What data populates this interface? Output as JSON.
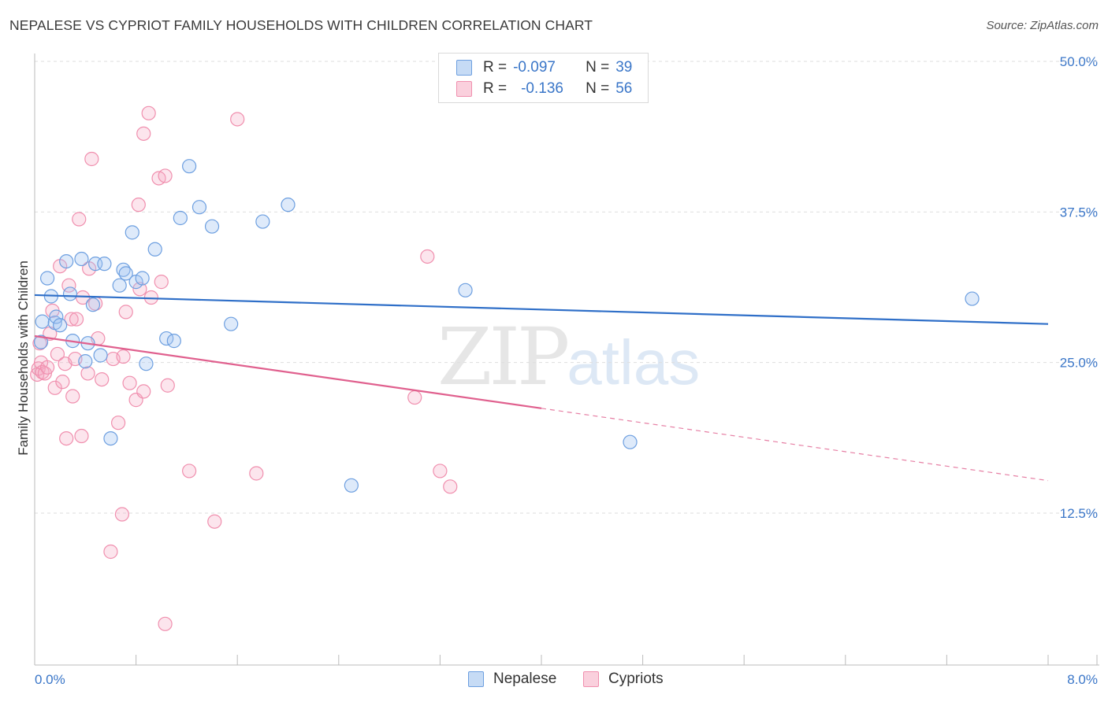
{
  "title": "NEPALESE VS CYPRIOT FAMILY HOUSEHOLDS WITH CHILDREN CORRELATION CHART",
  "source": "Source: ZipAtlas.com",
  "watermark": {
    "zip": "ZIP",
    "atlas": "atlas"
  },
  "legend_stats": [
    {
      "r_label": "R =",
      "r_value": "-0.097",
      "n_label": "N =",
      "n_value": "39"
    },
    {
      "r_label": "R =",
      "r_value": "-0.136",
      "n_label": "N =",
      "n_value": "56"
    }
  ],
  "chart_data": {
    "type": "scatter",
    "title": "NEPALESE VS CYPRIOT FAMILY HOUSEHOLDS WITH CHILDREN CORRELATION CHART",
    "xlabel": "",
    "ylabel": "Family Households with Children",
    "xlim": [
      0,
      8
    ],
    "ylim": [
      0,
      52
    ],
    "x_ticks": [
      "0.0%",
      "8.0%"
    ],
    "y_ticks": [
      {
        "value": 12.5,
        "label": "12.5%"
      },
      {
        "value": 25.0,
        "label": "25.0%"
      },
      {
        "value": 37.5,
        "label": "37.5%"
      },
      {
        "value": 50.0,
        "label": "50.0%"
      }
    ],
    "grid": "horizontal dashed",
    "legend_position": "bottom-center",
    "colors": {
      "nepalese": "#6d9fe0",
      "cypriots": "#f08fae",
      "nepalese_line": "#2f6fc8",
      "cypriots_line": "#e0608e"
    },
    "series": [
      {
        "name": "Nepalese",
        "trend": {
          "x0": 0.0,
          "y0": 30.6,
          "x1": 8.0,
          "y1": 28.2
        },
        "points": [
          [
            0.05,
            26.7
          ],
          [
            0.06,
            28.4
          ],
          [
            0.1,
            32.0
          ],
          [
            0.13,
            30.5
          ],
          [
            0.16,
            28.3
          ],
          [
            0.17,
            28.8
          ],
          [
            0.2,
            28.1
          ],
          [
            0.25,
            33.4
          ],
          [
            0.28,
            30.7
          ],
          [
            0.3,
            26.8
          ],
          [
            0.37,
            33.6
          ],
          [
            0.4,
            25.1
          ],
          [
            0.42,
            26.6
          ],
          [
            0.46,
            29.8
          ],
          [
            0.48,
            33.2
          ],
          [
            0.52,
            25.6
          ],
          [
            0.55,
            33.2
          ],
          [
            0.6,
            18.7
          ],
          [
            0.67,
            31.4
          ],
          [
            0.7,
            32.7
          ],
          [
            0.72,
            32.4
          ],
          [
            0.77,
            35.8
          ],
          [
            0.8,
            31.7
          ],
          [
            0.85,
            32.0
          ],
          [
            0.88,
            24.9
          ],
          [
            0.95,
            34.4
          ],
          [
            1.04,
            27.0
          ],
          [
            1.1,
            26.8
          ],
          [
            1.15,
            37.0
          ],
          [
            1.22,
            41.3
          ],
          [
            1.3,
            37.9
          ],
          [
            1.4,
            36.3
          ],
          [
            1.55,
            28.2
          ],
          [
            1.8,
            36.7
          ],
          [
            2.0,
            38.1
          ],
          [
            2.5,
            14.8
          ],
          [
            3.4,
            31.0
          ],
          [
            4.7,
            18.4
          ],
          [
            7.4,
            30.3
          ]
        ]
      },
      {
        "name": "Cypriots",
        "trend": {
          "x0": 0.0,
          "y0": 27.2,
          "x1": 4.0,
          "y1": 21.2,
          "dash_to": {
            "x": 8.0,
            "y": 15.2
          }
        },
        "points": [
          [
            0.02,
            24.0
          ],
          [
            0.03,
            24.5
          ],
          [
            0.04,
            26.6
          ],
          [
            0.05,
            25.0
          ],
          [
            0.06,
            24.2
          ],
          [
            0.08,
            24.1
          ],
          [
            0.1,
            24.6
          ],
          [
            0.12,
            27.4
          ],
          [
            0.14,
            29.3
          ],
          [
            0.16,
            22.9
          ],
          [
            0.18,
            25.7
          ],
          [
            0.2,
            33.0
          ],
          [
            0.22,
            23.4
          ],
          [
            0.24,
            24.9
          ],
          [
            0.25,
            18.7
          ],
          [
            0.27,
            31.4
          ],
          [
            0.29,
            28.6
          ],
          [
            0.3,
            22.2
          ],
          [
            0.32,
            25.3
          ],
          [
            0.33,
            28.6
          ],
          [
            0.35,
            36.9
          ],
          [
            0.37,
            18.9
          ],
          [
            0.38,
            30.4
          ],
          [
            0.42,
            24.1
          ],
          [
            0.43,
            32.8
          ],
          [
            0.45,
            41.9
          ],
          [
            0.48,
            29.9
          ],
          [
            0.5,
            27.0
          ],
          [
            0.53,
            23.6
          ],
          [
            0.62,
            25.3
          ],
          [
            0.66,
            20.0
          ],
          [
            0.7,
            25.5
          ],
          [
            0.69,
            12.4
          ],
          [
            0.72,
            29.2
          ],
          [
            0.75,
            23.3
          ],
          [
            0.6,
            9.3
          ],
          [
            0.8,
            21.9
          ],
          [
            0.82,
            38.1
          ],
          [
            0.83,
            31.1
          ],
          [
            0.86,
            22.6
          ],
          [
            0.86,
            44.0
          ],
          [
            0.9,
            45.7
          ],
          [
            0.92,
            30.4
          ],
          [
            0.98,
            40.3
          ],
          [
            1.0,
            31.7
          ],
          [
            1.03,
            40.5
          ],
          [
            1.05,
            23.1
          ],
          [
            1.03,
            3.3
          ],
          [
            1.22,
            16.0
          ],
          [
            1.42,
            11.8
          ],
          [
            1.6,
            45.2
          ],
          [
            1.75,
            15.8
          ],
          [
            3.0,
            22.1
          ],
          [
            3.1,
            33.8
          ],
          [
            3.2,
            16.0
          ],
          [
            3.28,
            14.7
          ]
        ]
      }
    ]
  }
}
